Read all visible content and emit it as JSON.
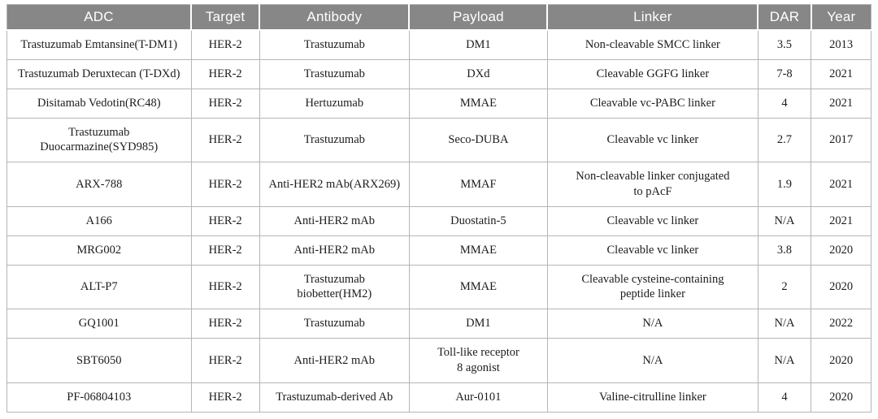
{
  "table": {
    "columns": [
      "ADC",
      "Target",
      "Antibody",
      "Payload",
      "Linker",
      "DAR",
      "Year"
    ],
    "column_keys": [
      "adc",
      "target",
      "antibody",
      "payload",
      "linker",
      "dar",
      "year"
    ],
    "rows": [
      [
        "Trastuzumab Emtansine(T-DM1)",
        "HER-2",
        "Trastuzumab",
        "DM1",
        "Non-cleavable SMCC linker",
        "3.5",
        "2013"
      ],
      [
        "Trastuzumab Deruxtecan (T-DXd)",
        "HER-2",
        "Trastuzumab",
        "DXd",
        "Cleavable GGFG linker",
        "7-8",
        "2021"
      ],
      [
        "Disitamab Vedotin(RC48)",
        "HER-2",
        "Hertuzumab",
        "MMAE",
        "Cleavable vc-PABC linker",
        "4",
        "2021"
      ],
      [
        "Trastuzumab\nDuocarmazine(SYD985)",
        "HER-2",
        "Trastuzumab",
        "Seco-DUBA",
        "Cleavable vc linker",
        "2.7",
        "2017"
      ],
      [
        "ARX-788",
        "HER-2",
        "Anti-HER2 mAb(ARX269)",
        "MMAF",
        "Non-cleavable linker conjugated\nto pAcF",
        "1.9",
        "2021"
      ],
      [
        "A166",
        "HER-2",
        "Anti-HER2 mAb",
        "Duostatin-5",
        "Cleavable vc linker",
        "N/A",
        "2021"
      ],
      [
        "MRG002",
        "HER-2",
        "Anti-HER2 mAb",
        "MMAE",
        "Cleavable vc linker",
        "3.8",
        "2020"
      ],
      [
        "ALT-P7",
        "HER-2",
        "Trastuzumab\nbiobetter(HM2)",
        "MMAE",
        "Cleavable cysteine-containing\npeptide linker",
        "2",
        "2020"
      ],
      [
        "GQ1001",
        "HER-2",
        "Trastuzumab",
        "DM1",
        "N/A",
        "N/A",
        "2022"
      ],
      [
        "SBT6050",
        "HER-2",
        "Anti-HER2 mAb",
        "Toll-like receptor\n8 agonist",
        "N/A",
        "N/A",
        "2020"
      ],
      [
        "PF-06804103",
        "HER-2",
        "Trastuzumab-derived Ab",
        "Aur-0101",
        "Valine-citrulline linker",
        "4",
        "2020"
      ]
    ]
  },
  "colors": {
    "header_background": "#878787",
    "header_text": "#ffffff",
    "body_text": "#1c1c1c",
    "grid_border": "#b5b5b5"
  }
}
